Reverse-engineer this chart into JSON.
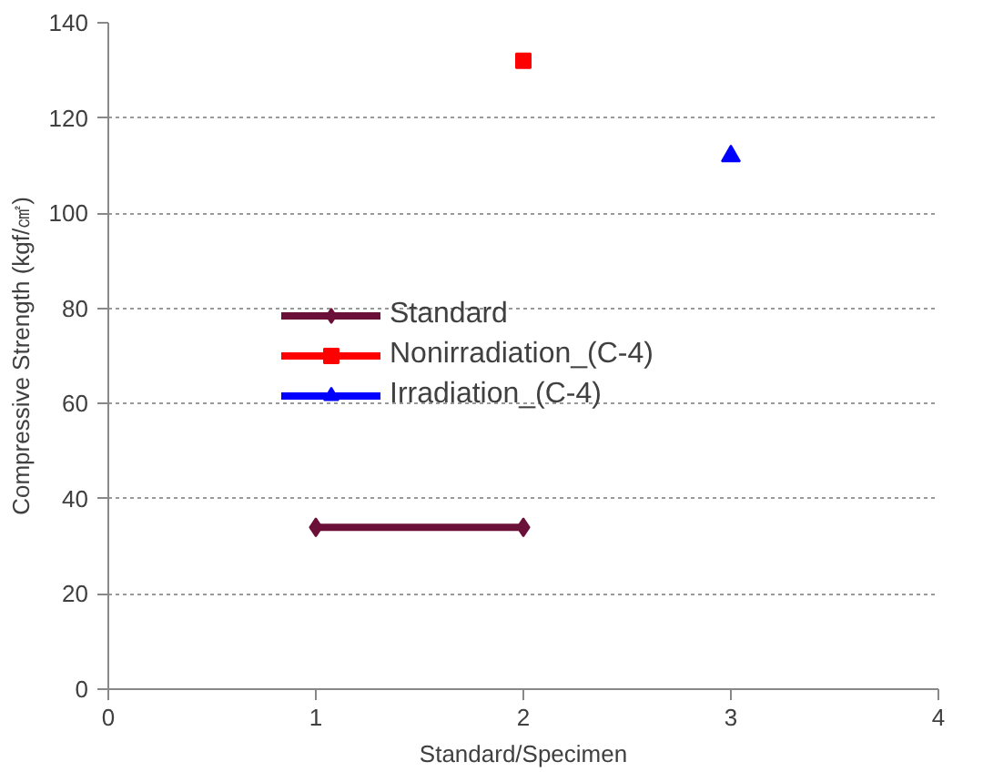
{
  "chart_data": {
    "type": "line",
    "xlabel": "Standard/Specimen",
    "ylabel": "Compressive Strength (kgf/㎠)",
    "xlim": [
      0,
      4
    ],
    "xticks": [
      0,
      1,
      2,
      3,
      4
    ],
    "ylim": [
      0,
      140
    ],
    "yticks": [
      0,
      20,
      40,
      60,
      80,
      100,
      120,
      140
    ],
    "grid": "y",
    "legend": "left",
    "series": [
      {
        "name": "Standard",
        "color": "#6b1038",
        "x": [
          1,
          2
        ],
        "values": [
          34,
          34
        ],
        "marker": "diamond"
      },
      {
        "name": "Nonirradiation_(C-4)",
        "color": "#ff0000",
        "x": [
          2
        ],
        "values": [
          132
        ],
        "marker": "square"
      },
      {
        "name": "Irradiation_(C-4)",
        "color": "#0000ff",
        "x": [
          3
        ],
        "values": [
          112
        ],
        "marker": "triangle"
      }
    ]
  }
}
